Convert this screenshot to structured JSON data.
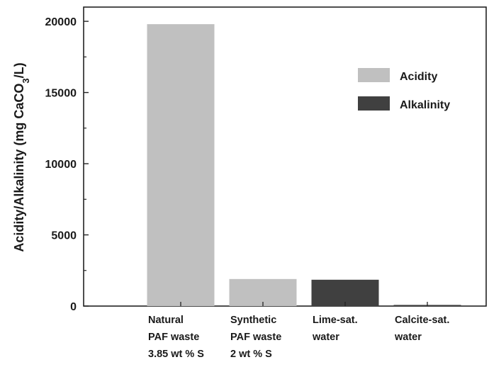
{
  "chart_data": {
    "type": "bar",
    "categories": [
      [
        "Natural",
        "PAF waste",
        "3.85 wt % S"
      ],
      [
        "Synthetic",
        "PAF waste",
        "2 wt % S"
      ],
      [
        "Lime-sat.",
        "water"
      ],
      [
        "Calcite-sat.",
        "water"
      ]
    ],
    "series": [
      {
        "name": "Acidity",
        "color": "#c0c0c0",
        "values": [
          19800,
          1900,
          null,
          null
        ]
      },
      {
        "name": "Alkalinity",
        "color": "#404040",
        "values": [
          null,
          null,
          1850,
          80
        ]
      }
    ],
    "ylabel": {
      "main": "Acidity/Alkalinity (mg CaCO",
      "sub": "3",
      "end": "/L)"
    },
    "ylim": [
      0,
      21000
    ],
    "yticks": [
      "0",
      "5000",
      "10000",
      "15000",
      "20000"
    ],
    "legend_position": "upper-right",
    "grid": false
  }
}
